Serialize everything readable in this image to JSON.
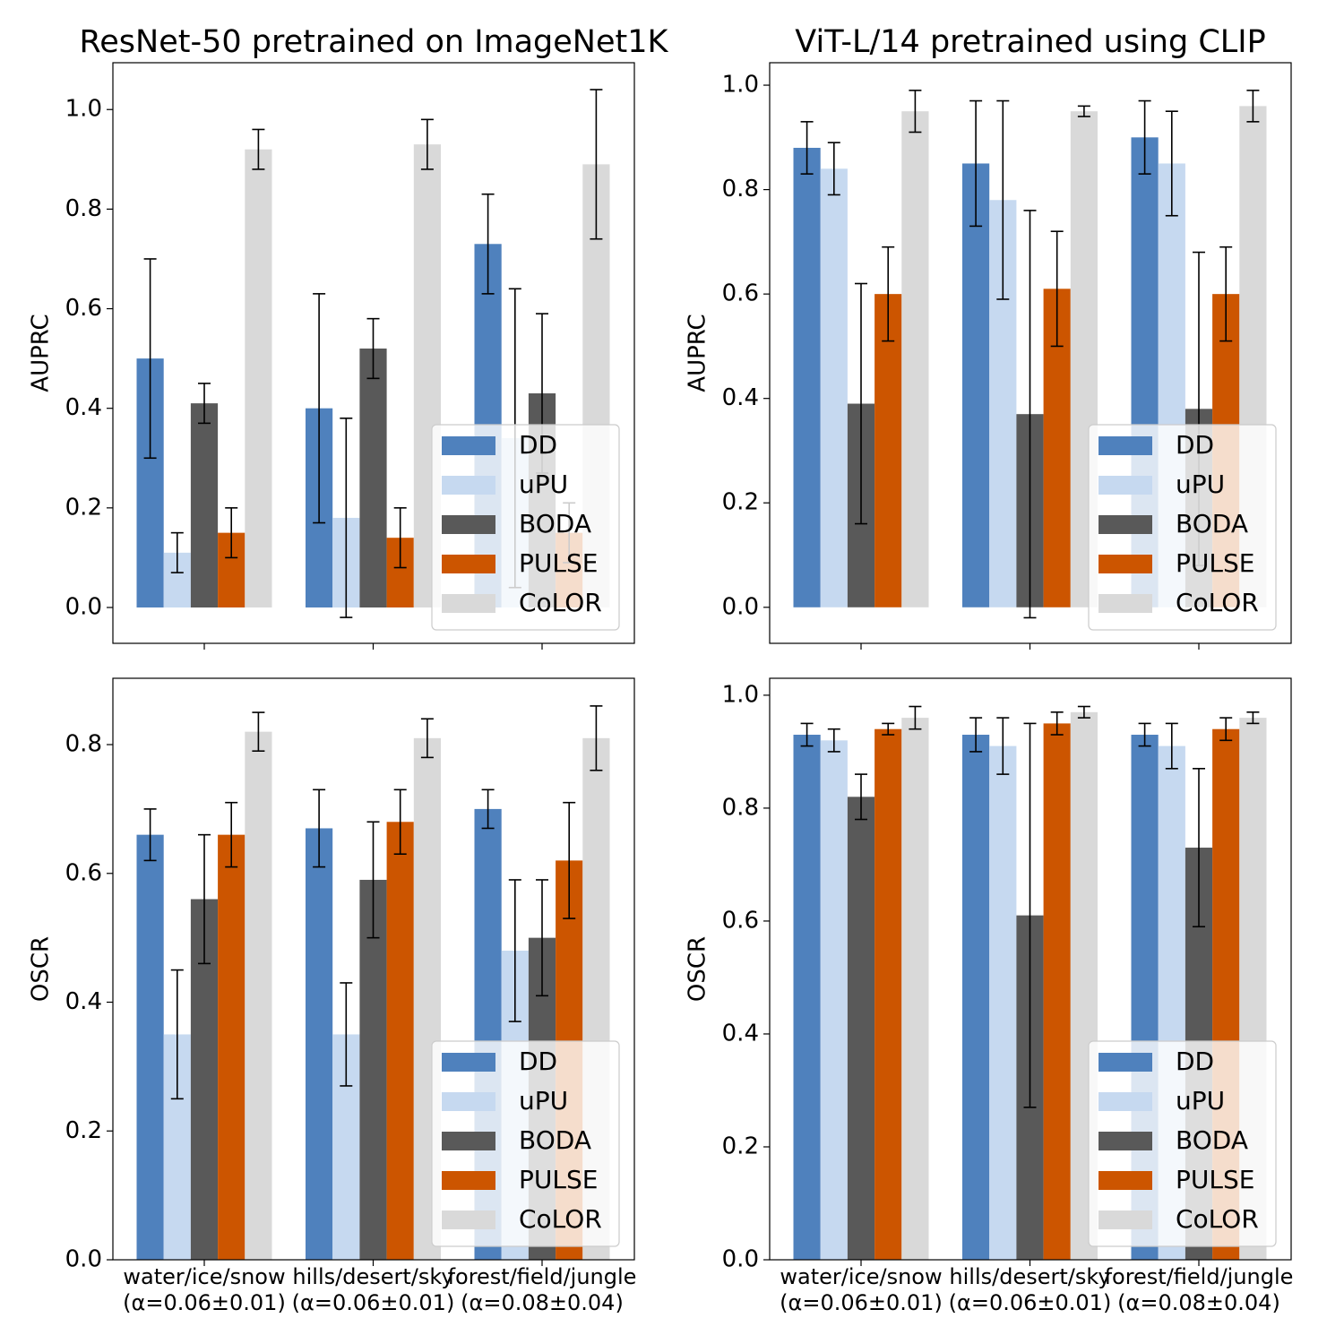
{
  "chart_data": [
    {
      "type": "bar",
      "title": "ResNet-50 pretrained on ImageNet1K",
      "ylabel": "AUPRC",
      "ylim": [
        -0.072,
        1.094
      ],
      "yticks": [
        {
          "value": 0,
          "label": "0.0"
        },
        0.2,
        0.4,
        0.6,
        0.8,
        {
          "value": 1,
          "label": "1.0"
        }
      ],
      "legend": "lower right",
      "series": [
        {
          "name": "DD",
          "color": "#4f81bd",
          "values": [
            0.5,
            0.4,
            0.73
          ],
          "errors": [
            0.2,
            0.23,
            0.1
          ]
        },
        {
          "name": "uPU",
          "color": "#c6d9f0",
          "values": [
            0.11,
            0.18,
            0.34
          ],
          "errors": [
            0.04,
            0.2,
            0.3
          ]
        },
        {
          "name": "BODA",
          "color": "#595959",
          "values": [
            0.41,
            0.52,
            0.43
          ],
          "errors": [
            0.04,
            0.06,
            0.16
          ]
        },
        {
          "name": "PULSE",
          "color": "#cc5500",
          "values": [
            0.15,
            0.14,
            0.15
          ],
          "errors": [
            0.05,
            0.06,
            0.06
          ]
        },
        {
          "name": "CoLOR",
          "color": "#d9d9d9",
          "values": [
            0.92,
            0.93,
            0.89
          ],
          "errors": [
            0.04,
            0.05,
            0.15
          ]
        }
      ]
    },
    {
      "type": "bar",
      "title": "ViT-L/14 pretrained using CLIP",
      "ylabel": "AUPRC",
      "ylim": [
        -0.069,
        1.043
      ],
      "yticks": [
        {
          "value": 0,
          "label": "0.0"
        },
        0.2,
        0.4,
        0.6,
        0.8,
        {
          "value": 1,
          "label": "1.0"
        }
      ],
      "legend": "lower right",
      "series": [
        {
          "name": "DD",
          "color": "#4f81bd",
          "values": [
            0.88,
            0.85,
            0.9
          ],
          "errors": [
            0.05,
            0.12,
            0.07
          ]
        },
        {
          "name": "uPU",
          "color": "#c6d9f0",
          "values": [
            0.84,
            0.78,
            0.85
          ],
          "errors": [
            0.05,
            0.19,
            0.1
          ]
        },
        {
          "name": "BODA",
          "color": "#595959",
          "values": [
            0.39,
            0.37,
            0.38
          ],
          "errors": [
            0.23,
            0.39,
            0.3
          ]
        },
        {
          "name": "PULSE",
          "color": "#cc5500",
          "values": [
            0.6,
            0.61,
            0.6
          ],
          "errors": [
            0.09,
            0.11,
            0.09
          ]
        },
        {
          "name": "CoLOR",
          "color": "#d9d9d9",
          "values": [
            0.95,
            0.95,
            0.96
          ],
          "errors": [
            0.04,
            0.01,
            0.03
          ]
        }
      ]
    },
    {
      "type": "bar",
      "ylabel": "OSCR",
      "categories": [
        [
          "water/ice/snow",
          "(α=0.06±0.01)"
        ],
        [
          "hills/desert/sky",
          "(α=0.06±0.01)"
        ],
        [
          "forest/field/jungle",
          "(α=0.08±0.04)"
        ]
      ],
      "ylim": [
        0,
        0.903
      ],
      "yticks": [
        {
          "value": 0,
          "label": "0.0"
        },
        0.2,
        0.4,
        0.6,
        0.8
      ],
      "legend": "lower right",
      "series": [
        {
          "name": "DD",
          "color": "#4f81bd",
          "values": [
            0.66,
            0.67,
            0.7
          ],
          "errors": [
            0.04,
            0.06,
            0.03
          ]
        },
        {
          "name": "uPU",
          "color": "#c6d9f0",
          "values": [
            0.35,
            0.35,
            0.48
          ],
          "errors": [
            0.1,
            0.08,
            0.11
          ]
        },
        {
          "name": "BODA",
          "color": "#595959",
          "values": [
            0.56,
            0.59,
            0.5
          ],
          "errors": [
            0.1,
            0.09,
            0.09
          ]
        },
        {
          "name": "PULSE",
          "color": "#cc5500",
          "values": [
            0.66,
            0.68,
            0.62
          ],
          "errors": [
            0.05,
            0.05,
            0.09
          ]
        },
        {
          "name": "CoLOR",
          "color": "#d9d9d9",
          "values": [
            0.82,
            0.81,
            0.81
          ],
          "errors": [
            0.03,
            0.03,
            0.05
          ]
        }
      ]
    },
    {
      "type": "bar",
      "ylabel": "OSCR",
      "categories": [
        [
          "water/ice/snow",
          "(α=0.06±0.01)"
        ],
        [
          "hills/desert/sky",
          "(α=0.06±0.01)"
        ],
        [
          "forest/field/jungle",
          "(α=0.08±0.04)"
        ]
      ],
      "ylim": [
        0,
        1.03
      ],
      "yticks": [
        {
          "value": 0,
          "label": "0.0"
        },
        0.2,
        0.4,
        0.6,
        0.8,
        {
          "value": 1,
          "label": "1.0"
        }
      ],
      "legend": "lower right",
      "series": [
        {
          "name": "DD",
          "color": "#4f81bd",
          "values": [
            0.93,
            0.93,
            0.93
          ],
          "errors": [
            0.02,
            0.03,
            0.02
          ]
        },
        {
          "name": "uPU",
          "color": "#c6d9f0",
          "values": [
            0.92,
            0.91,
            0.91
          ],
          "errors": [
            0.02,
            0.05,
            0.04
          ]
        },
        {
          "name": "BODA",
          "color": "#595959",
          "values": [
            0.82,
            0.61,
            0.73
          ],
          "errors": [
            0.04,
            0.34,
            0.14
          ]
        },
        {
          "name": "PULSE",
          "color": "#cc5500",
          "values": [
            0.94,
            0.95,
            0.94
          ],
          "errors": [
            0.01,
            0.02,
            0.02
          ]
        },
        {
          "name": "CoLOR",
          "color": "#d9d9d9",
          "values": [
            0.96,
            0.97,
            0.96
          ],
          "errors": [
            0.02,
            0.01,
            0.01
          ]
        }
      ]
    }
  ]
}
